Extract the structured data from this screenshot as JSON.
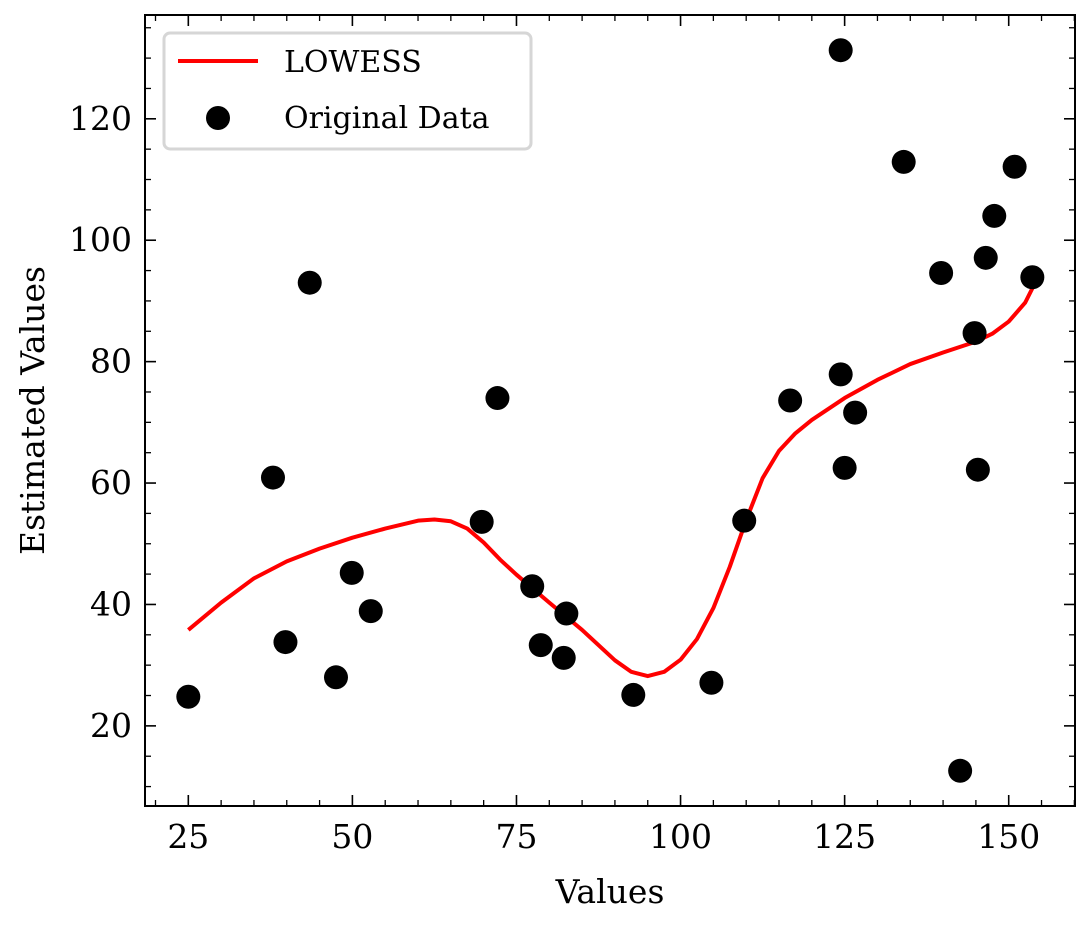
{
  "chart_data": {
    "type": "scatter",
    "title": "",
    "xlabel": "Values",
    "ylabel": "Estimated Values",
    "xlim": [
      18.4,
      160.1
    ],
    "ylim": [
      6.8,
      137.1
    ],
    "xticks": [
      25,
      50,
      75,
      100,
      125,
      150
    ],
    "yticks": [
      20,
      40,
      60,
      80,
      100,
      120
    ],
    "xticks_minor": [
      20,
      30,
      35,
      40,
      45,
      55,
      60,
      65,
      70,
      80,
      85,
      90,
      95,
      105,
      110,
      115,
      120,
      130,
      135,
      140,
      145,
      155,
      160
    ],
    "yticks_minor": [
      10,
      15,
      25,
      30,
      35,
      45,
      50,
      55,
      65,
      70,
      75,
      85,
      90,
      95,
      105,
      110,
      115,
      125,
      130,
      135
    ],
    "grid": false,
    "legend": {
      "position": "top-left"
    },
    "series": [
      {
        "name": "LOWESS",
        "kind": "line",
        "color": "#ff0000",
        "x": [
          25,
          30,
          35,
          40,
          45,
          50,
          55,
          60,
          62.5,
          65,
          67.5,
          70,
          72.5,
          75,
          80,
          85,
          90,
          92.5,
          95,
          97.5,
          100,
          102.5,
          105,
          107.5,
          110,
          112.5,
          115,
          117.5,
          120,
          125,
          130,
          135,
          140,
          145,
          147.5,
          150,
          152.5,
          153.8
        ],
        "y": [
          35.8,
          40.3,
          44.3,
          47.1,
          49.2,
          51.0,
          52.5,
          53.8,
          54.0,
          53.7,
          52.5,
          50.2,
          47.4,
          44.9,
          40.3,
          35.8,
          30.8,
          28.9,
          28.2,
          28.9,
          30.9,
          34.3,
          39.4,
          46.2,
          53.9,
          60.8,
          65.3,
          68.2,
          70.4,
          74.0,
          77.0,
          79.6,
          81.5,
          83.3,
          84.6,
          86.6,
          89.7,
          92.5
        ]
      },
      {
        "name": "Original Data",
        "kind": "scatter",
        "color": "#000000",
        "x": [
          25.0,
          37.9,
          39.8,
          43.5,
          47.5,
          49.9,
          52.8,
          69.7,
          72.1,
          77.4,
          78.7,
          82.2,
          82.6,
          92.8,
          104.7,
          109.7,
          116.7,
          124.4,
          124.4,
          125.0,
          126.6,
          134.0,
          139.7,
          142.6,
          144.8,
          145.3,
          146.5,
          147.8,
          150.9,
          153.6
        ],
        "y": [
          24.8,
          60.9,
          33.8,
          93.0,
          28.0,
          45.2,
          38.9,
          53.6,
          74.0,
          43.0,
          33.3,
          31.2,
          38.5,
          25.1,
          27.1,
          53.8,
          73.6,
          131.3,
          77.9,
          62.5,
          71.6,
          112.9,
          94.6,
          12.6,
          84.7,
          62.2,
          97.1,
          104.0,
          112.1,
          93.9
        ]
      }
    ]
  }
}
